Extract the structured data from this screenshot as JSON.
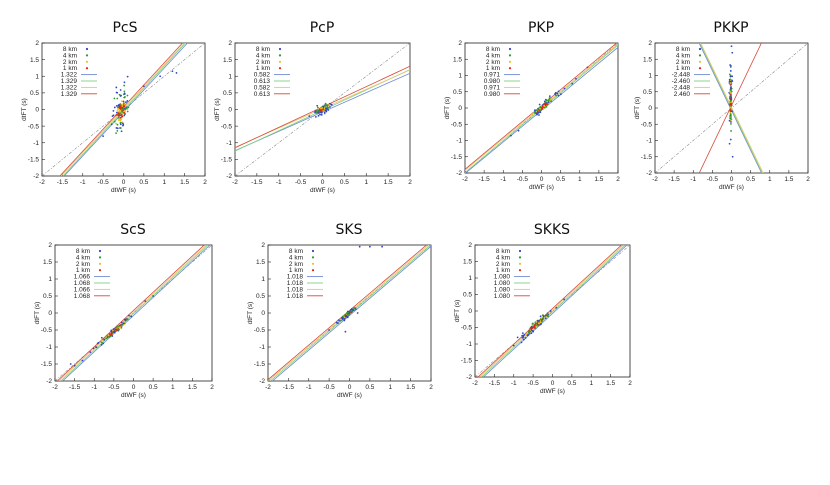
{
  "figure_title": "",
  "colors": {
    "blue": "#2f47c6",
    "green": "#2e9b2e",
    "yellow": "#e6c619",
    "red": "#e02418",
    "ref_line": "#888888",
    "fit_colors": [
      "#6f8ad6",
      "#7fd17f",
      "#e8c86a",
      "#d84b3c"
    ]
  },
  "panel_legend_labels": [
    "8 km",
    "4 km",
    "2 km",
    "1 km"
  ],
  "chart_data": [
    {
      "type": "scatter",
      "title": "PcS",
      "xlabel": "dtWF (s)",
      "ylabel": "dtFT (s)",
      "xlim": [
        -2,
        2
      ],
      "ylim": [
        -2,
        2
      ],
      "xticks": [
        "-2",
        "-1.5",
        "-1",
        "-0.5",
        "0",
        "0.5",
        "1",
        "1.5",
        "2"
      ],
      "yticks": [
        "-2",
        "-1.5",
        "-1",
        "-0.5",
        "0",
        "0.5",
        "1",
        "1.5",
        "2"
      ],
      "legend": [
        "8 km",
        "4 km",
        "2 km",
        "1 km"
      ],
      "fit_slopes": [
        "1.322",
        "1.329",
        "1.322",
        "1.329"
      ],
      "cloud": {
        "cx": -0.05,
        "cy": 0.0,
        "sx": 0.18,
        "sy": 0.55,
        "slope": 0.9
      },
      "extra_points": [
        [
          1.2,
          1.15
        ],
        [
          1.3,
          1.1
        ],
        [
          0.9,
          1.0
        ],
        [
          0.5,
          0.7
        ],
        [
          -0.5,
          -0.8
        ]
      ]
    },
    {
      "type": "scatter",
      "title": "PcP",
      "xlabel": "dtWF (s)",
      "ylabel": "dtFT (s)",
      "xlim": [
        -2,
        2
      ],
      "ylim": [
        -2,
        2
      ],
      "xticks": [
        "-2",
        "-1.5",
        "-1",
        "-0.5",
        "0",
        "0.5",
        "1",
        "1.5",
        "2"
      ],
      "yticks": [
        "-2",
        "-1.5",
        "-1",
        "-0.5",
        "0",
        "0.5",
        "1",
        "1.5",
        "2"
      ],
      "legend": [
        "8 km",
        "4 km",
        "2 km",
        "1 km"
      ],
      "fit_slopes": [
        "0.582",
        "0.613",
        "0.582",
        "0.613"
      ],
      "cloud": {
        "cx": 0.0,
        "cy": 0.0,
        "sx": 0.18,
        "sy": 0.12,
        "slope": 0.55
      },
      "extra_points": [
        [
          -0.3,
          -0.2
        ],
        [
          0.2,
          0.15
        ]
      ]
    },
    {
      "type": "scatter",
      "title": "PKP",
      "xlabel": "dtWF (s)",
      "ylabel": "dtFT (s)",
      "xlim": [
        -2,
        2
      ],
      "ylim": [
        -2,
        2
      ],
      "xticks": [
        "-2",
        "-1.5",
        "-1",
        "-0.5",
        "0",
        "0.5",
        "1",
        "1.5",
        "2"
      ],
      "yticks": [
        "-2",
        "-1.5",
        "-1",
        "-0.5",
        "0",
        "0.5",
        "1",
        "1.5",
        "2"
      ],
      "legend": [
        "8 km",
        "4 km",
        "2 km",
        "1 km"
      ],
      "fit_slopes": [
        "0.971",
        "0.980",
        "0.971",
        "0.980"
      ],
      "cloud": {
        "cx": 0.05,
        "cy": 0.05,
        "sx": 0.32,
        "sy": 0.12,
        "slope": 0.97
      },
      "extra_points": [
        [
          0.9,
          0.9
        ],
        [
          1.2,
          1.25
        ],
        [
          0.8,
          0.75
        ],
        [
          -0.6,
          -0.7
        ],
        [
          -0.8,
          -0.85
        ],
        [
          0.6,
          0.6
        ]
      ]
    },
    {
      "type": "scatter",
      "title": "PKKP",
      "xlabel": "dtWF (s)",
      "ylabel": "dtFT (s)",
      "xlim": [
        -2,
        2
      ],
      "ylim": [
        -2,
        2
      ],
      "xticks": [
        "-2",
        "-1.5",
        "-1",
        "-0.5",
        "0",
        "0.5",
        "1",
        "1.5",
        "2"
      ],
      "yticks": [
        "-2",
        "-1.5",
        "-1",
        "-0.5",
        "0",
        "0.5",
        "1",
        "1.5",
        "2"
      ],
      "legend": [
        "8 km",
        "4 km",
        "2 km",
        "1 km"
      ],
      "fit_slopes": [
        "-2.448",
        "-2.460",
        "-2.448",
        "2.460"
      ],
      "cloud": {
        "cx": -0.02,
        "cy": 0.3,
        "sx": 0.03,
        "sy": 0.9,
        "slope": 0.0
      },
      "extra_points": [
        [
          0.0,
          1.9
        ],
        [
          0.02,
          1.7
        ],
        [
          -0.05,
          -1.1
        ],
        [
          0.03,
          -1.5
        ]
      ]
    },
    {
      "type": "scatter",
      "title": "ScS",
      "xlabel": "dtWF (s)",
      "ylabel": "dtFT (s)",
      "xlim": [
        -2,
        2
      ],
      "ylim": [
        -2,
        2
      ],
      "xticks": [
        "-2",
        "-1.5",
        "-1",
        "-0.5",
        "0",
        "0.5",
        "1",
        "1.5",
        "2"
      ],
      "yticks": [
        "-2",
        "-1.5",
        "-1",
        "-0.5",
        "0",
        "0.5",
        "1",
        "1.5",
        "2"
      ],
      "legend": [
        "8 km",
        "4 km",
        "2 km",
        "1 km"
      ],
      "fit_slopes": [
        "1.066",
        "1.068",
        "1.066",
        "1.068"
      ],
      "cloud": {
        "cx": -0.5,
        "cy": -0.55,
        "sx": 0.4,
        "sy": 0.08,
        "slope": 1.0
      },
      "extra_points": [
        [
          -1.5,
          -1.55
        ],
        [
          -1.3,
          -1.4
        ],
        [
          -1.1,
          -1.15
        ],
        [
          0.5,
          0.5
        ],
        [
          0.3,
          0.35
        ],
        [
          -1.6,
          -1.5
        ]
      ]
    },
    {
      "type": "scatter",
      "title": "SKS",
      "xlabel": "dtWF (s)",
      "ylabel": "dtFT (s)",
      "xlim": [
        -2,
        2
      ],
      "ylim": [
        -2,
        2
      ],
      "xticks": [
        "-2",
        "-1.5",
        "-1",
        "-0.5",
        "0",
        "0.5",
        "1",
        "1.5",
        "2"
      ],
      "yticks": [
        "-2",
        "-1.5",
        "-1",
        "-0.5",
        "0",
        "0.5",
        "1",
        "1.5",
        "2"
      ],
      "legend": [
        "8 km",
        "4 km",
        "2 km",
        "1 km"
      ],
      "fit_slopes": [
        "1.018",
        "1.018",
        "1.018",
        "1.018"
      ],
      "cloud": {
        "cx": -0.05,
        "cy": -0.05,
        "sx": 0.18,
        "sy": 0.07,
        "slope": 0.95
      },
      "extra_points": [
        [
          -0.5,
          -0.5
        ],
        [
          0.2,
          0.0
        ],
        [
          0.5,
          1.95
        ],
        [
          0.8,
          1.95
        ],
        [
          0.25,
          1.95
        ],
        [
          -0.1,
          -0.55
        ]
      ]
    },
    {
      "type": "scatter",
      "title": "SKKS",
      "xlabel": "dtWF (s)",
      "ylabel": "dtFT (s)",
      "xlim": [
        -2,
        2
      ],
      "ylim": [
        -2,
        2
      ],
      "xticks": [
        "-2",
        "-1.5",
        "-1",
        "-0.5",
        "0",
        "0.5",
        "1",
        "1.5",
        "2"
      ],
      "yticks": [
        "-2",
        "-1.5",
        "-1",
        "-0.5",
        "0",
        "0.5",
        "1",
        "1.5",
        "2"
      ],
      "legend": [
        "8 km",
        "4 km",
        "2 km",
        "1 km"
      ],
      "fit_slopes": [
        "1.080",
        "1.080",
        "1.080",
        "1.080"
      ],
      "cloud": {
        "cx": -0.4,
        "cy": -0.4,
        "sx": 0.35,
        "sy": 0.12,
        "slope": 1.0
      },
      "extra_points": [
        [
          -1.0,
          -1.05
        ],
        [
          -0.9,
          -0.8
        ],
        [
          0.1,
          0.1
        ],
        [
          0.3,
          0.35
        ],
        [
          -0.8,
          -0.95
        ]
      ]
    }
  ]
}
